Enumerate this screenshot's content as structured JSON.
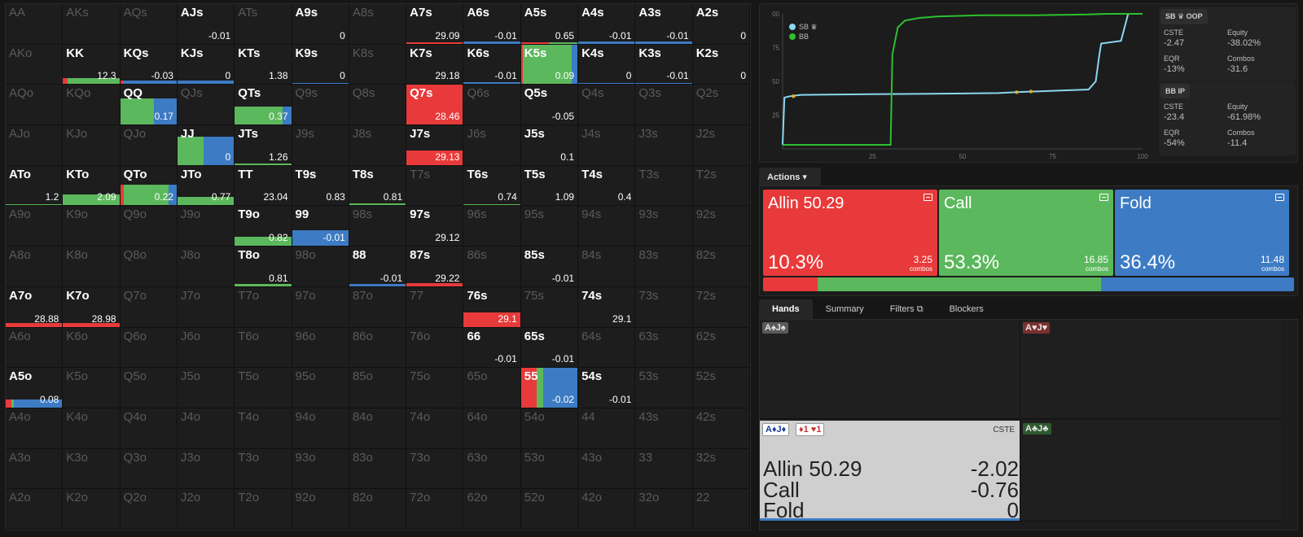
{
  "colors": {
    "allin": "#e83a3a",
    "call": "#5cb85c",
    "fold": "#3d7bc4",
    "sb": "#8ad8f0",
    "bb": "#2ec02e"
  },
  "grid": [
    [
      {
        "h": "AA",
        "d": 1
      },
      {
        "h": "AKs",
        "d": 1
      },
      {
        "h": "AQs",
        "d": 1
      },
      {
        "h": "AJs",
        "v": "-0.01"
      },
      {
        "h": "ATs",
        "d": 1
      },
      {
        "h": "A9s",
        "v": "0"
      },
      {
        "h": "A8s",
        "d": 1
      },
      {
        "h": "A7s",
        "v": "29.09",
        "b": [
          [
            1,
            0,
            0,
            3
          ]
        ]
      },
      {
        "h": "A6s",
        "v": "-0.01",
        "b": [
          [
            0,
            0,
            1,
            5
          ]
        ]
      },
      {
        "h": "A5s",
        "v": "0.65",
        "b": [
          [
            0.5,
            0.5,
            0,
            3
          ]
        ]
      },
      {
        "h": "A4s",
        "v": "-0.01",
        "b": [
          [
            0,
            0,
            1,
            5
          ]
        ]
      },
      {
        "h": "A3s",
        "v": "-0.01",
        "b": [
          [
            0,
            0,
            1,
            5
          ]
        ]
      },
      {
        "h": "A2s",
        "v": "0"
      }
    ],
    [
      {
        "h": "AKo",
        "d": 1
      },
      {
        "h": "KK",
        "v": "12.3",
        "b": [
          [
            0.08,
            0.92,
            0,
            16
          ]
        ]
      },
      {
        "h": "KQs",
        "v": "-0.03",
        "b": [
          [
            0.05,
            0,
            0.95,
            10
          ]
        ]
      },
      {
        "h": "KJs",
        "v": "0",
        "b": [
          [
            0,
            0,
            1,
            10
          ]
        ]
      },
      {
        "h": "KTs",
        "v": "1.38"
      },
      {
        "h": "K9s",
        "v": "0",
        "b": [
          [
            0,
            0,
            1,
            3
          ]
        ]
      },
      {
        "h": "K8s",
        "d": 1
      },
      {
        "h": "K7s",
        "v": "29.18"
      },
      {
        "h": "K6s",
        "v": "-0.01",
        "b": [
          [
            0,
            0,
            1,
            5
          ]
        ]
      },
      {
        "h": "K5s",
        "v": "0.09",
        "b": [
          [
            0.03,
            0.87,
            0.1,
            100
          ]
        ]
      },
      {
        "h": "K4s",
        "v": "0",
        "b": [
          [
            0,
            0,
            1,
            3
          ]
        ]
      },
      {
        "h": "K3s",
        "v": "-0.01",
        "b": [
          [
            0,
            0,
            1,
            3
          ]
        ]
      },
      {
        "h": "K2s",
        "v": "0"
      }
    ],
    [
      {
        "h": "AQo",
        "d": 1
      },
      {
        "h": "KQo",
        "d": 1
      },
      {
        "h": "QQ",
        "v": "0.17",
        "b": [
          [
            0,
            0.6,
            0.4,
            66
          ]
        ]
      },
      {
        "h": "QJs",
        "d": 1
      },
      {
        "h": "QTs",
        "v": "0.37",
        "b": [
          [
            0,
            0.85,
            0.15,
            46
          ]
        ]
      },
      {
        "h": "Q9s",
        "d": 1
      },
      {
        "h": "Q8s",
        "d": 1
      },
      {
        "h": "Q7s",
        "v": "28.46",
        "b": [
          [
            1,
            0,
            0,
            100
          ]
        ]
      },
      {
        "h": "Q6s",
        "d": 1
      },
      {
        "h": "Q5s",
        "v": "-0.05"
      },
      {
        "h": "Q4s",
        "d": 1
      },
      {
        "h": "Q3s",
        "d": 1
      },
      {
        "h": "Q2s",
        "d": 1
      }
    ],
    [
      {
        "h": "AJo",
        "d": 1
      },
      {
        "h": "KJo",
        "d": 1
      },
      {
        "h": "QJo",
        "d": 1
      },
      {
        "h": "JJ",
        "v": "0",
        "b": [
          [
            0,
            0.46,
            0.54,
            72
          ]
        ]
      },
      {
        "h": "JTs",
        "v": "1.26",
        "b": [
          [
            0,
            1,
            0,
            3
          ]
        ]
      },
      {
        "h": "J9s",
        "d": 1
      },
      {
        "h": "J8s",
        "d": 1
      },
      {
        "h": "J7s",
        "v": "29.13",
        "b": [
          [
            1,
            0,
            0,
            36
          ]
        ]
      },
      {
        "h": "J6s",
        "d": 1
      },
      {
        "h": "J5s",
        "v": "0.1"
      },
      {
        "h": "J4s",
        "d": 1
      },
      {
        "h": "J3s",
        "d": 1
      },
      {
        "h": "J2s",
        "d": 1
      }
    ],
    [
      {
        "h": "ATo",
        "v": "1.2",
        "b": [
          [
            0,
            1,
            0,
            3
          ]
        ]
      },
      {
        "h": "KTo",
        "v": "2.09",
        "b": [
          [
            0,
            1,
            0,
            28
          ]
        ]
      },
      {
        "h": "QTo",
        "v": "0.22",
        "b": [
          [
            0.06,
            0.8,
            0.14,
            52
          ]
        ]
      },
      {
        "h": "JTo",
        "v": "0.77",
        "b": [
          [
            0,
            1,
            0,
            22
          ]
        ]
      },
      {
        "h": "TT",
        "v": "23.04"
      },
      {
        "h": "T9s",
        "v": "0.83"
      },
      {
        "h": "T8s",
        "v": "0.81",
        "b": [
          [
            0,
            1,
            0,
            6
          ]
        ]
      },
      {
        "h": "T7s",
        "d": 1
      },
      {
        "h": "T6s",
        "v": "0.74",
        "b": [
          [
            0,
            1,
            0,
            3
          ]
        ]
      },
      {
        "h": "T5s",
        "v": "1.09"
      },
      {
        "h": "T4s",
        "v": "0.4"
      },
      {
        "h": "T3s",
        "d": 1
      },
      {
        "h": "T2s",
        "d": 1
      }
    ],
    [
      {
        "h": "A9o",
        "d": 1
      },
      {
        "h": "K9o",
        "d": 1
      },
      {
        "h": "Q9o",
        "d": 1
      },
      {
        "h": "J9o",
        "d": 1
      },
      {
        "h": "T9o",
        "v": "0.82",
        "b": [
          [
            0,
            1,
            0,
            22
          ]
        ]
      },
      {
        "h": "99",
        "v": "-0.01",
        "b": [
          [
            0,
            0,
            1,
            40
          ]
        ]
      },
      {
        "h": "98s",
        "d": 1
      },
      {
        "h": "97s",
        "v": "29.12"
      },
      {
        "h": "96s",
        "d": 1
      },
      {
        "h": "95s",
        "d": 1
      },
      {
        "h": "94s",
        "d": 1
      },
      {
        "h": "93s",
        "d": 1
      },
      {
        "h": "92s",
        "d": 1
      }
    ],
    [
      {
        "h": "A8o",
        "d": 1
      },
      {
        "h": "K8o",
        "d": 1
      },
      {
        "h": "Q8o",
        "d": 1
      },
      {
        "h": "J8o",
        "d": 1
      },
      {
        "h": "T8o",
        "v": "0.81",
        "b": [
          [
            0,
            1,
            0,
            5
          ]
        ]
      },
      {
        "h": "98o",
        "d": 1
      },
      {
        "h": "88",
        "v": "-0.01",
        "b": [
          [
            0,
            0,
            1,
            6
          ]
        ]
      },
      {
        "h": "87s",
        "v": "29.22",
        "b": [
          [
            1,
            0,
            0,
            8
          ]
        ]
      },
      {
        "h": "86s",
        "d": 1
      },
      {
        "h": "85s",
        "v": "-0.01"
      },
      {
        "h": "84s",
        "d": 1
      },
      {
        "h": "83s",
        "d": 1
      },
      {
        "h": "82s",
        "d": 1
      }
    ],
    [
      {
        "h": "A7o",
        "v": "28.88",
        "b": [
          [
            1,
            0,
            0,
            10
          ]
        ]
      },
      {
        "h": "K7o",
        "v": "28.98",
        "b": [
          [
            1,
            0,
            0,
            10
          ]
        ]
      },
      {
        "h": "Q7o",
        "d": 1
      },
      {
        "h": "J7o",
        "d": 1
      },
      {
        "h": "T7o",
        "d": 1
      },
      {
        "h": "97o",
        "d": 1
      },
      {
        "h": "87o",
        "d": 1
      },
      {
        "h": "77",
        "d": 1
      },
      {
        "h": "76s",
        "v": "29.1",
        "b": [
          [
            1,
            0,
            0,
            36
          ]
        ]
      },
      {
        "h": "75s",
        "d": 1
      },
      {
        "h": "74s",
        "v": "29.1"
      },
      {
        "h": "73s",
        "d": 1
      },
      {
        "h": "72s",
        "d": 1
      }
    ],
    [
      {
        "h": "A6o",
        "d": 1
      },
      {
        "h": "K6o",
        "d": 1
      },
      {
        "h": "Q6o",
        "d": 1
      },
      {
        "h": "J6o",
        "d": 1
      },
      {
        "h": "T6o",
        "d": 1
      },
      {
        "h": "96o",
        "d": 1
      },
      {
        "h": "86o",
        "d": 1
      },
      {
        "h": "76o",
        "d": 1
      },
      {
        "h": "66",
        "v": "-0.01"
      },
      {
        "h": "65s",
        "v": "-0.01"
      },
      {
        "h": "64s",
        "d": 1
      },
      {
        "h": "63s",
        "d": 1
      },
      {
        "h": "62s",
        "d": 1
      }
    ],
    [
      {
        "h": "A5o",
        "v": "0.08",
        "b": [
          [
            0.1,
            0.05,
            0.85,
            20
          ]
        ]
      },
      {
        "h": "K5o",
        "d": 1
      },
      {
        "h": "Q5o",
        "d": 1
      },
      {
        "h": "J5o",
        "d": 1
      },
      {
        "h": "T5o",
        "d": 1
      },
      {
        "h": "95o",
        "d": 1
      },
      {
        "h": "85o",
        "d": 1
      },
      {
        "h": "75o",
        "d": 1
      },
      {
        "h": "65o",
        "d": 1
      },
      {
        "h": "55",
        "v": "-0.02",
        "b": [
          [
            0.28,
            0.12,
            0.6,
            100
          ]
        ]
      },
      {
        "h": "54s",
        "v": "-0.01"
      },
      {
        "h": "53s",
        "d": 1
      },
      {
        "h": "52s",
        "d": 1
      }
    ],
    [
      {
        "h": "A4o",
        "d": 1
      },
      {
        "h": "K4o",
        "d": 1
      },
      {
        "h": "Q4o",
        "d": 1
      },
      {
        "h": "J4o",
        "d": 1
      },
      {
        "h": "T4o",
        "d": 1
      },
      {
        "h": "94o",
        "d": 1
      },
      {
        "h": "84o",
        "d": 1
      },
      {
        "h": "74o",
        "d": 1
      },
      {
        "h": "64o",
        "d": 1
      },
      {
        "h": "54o",
        "d": 1
      },
      {
        "h": "44",
        "d": 1
      },
      {
        "h": "43s",
        "d": 1
      },
      {
        "h": "42s",
        "d": 1
      }
    ],
    [
      {
        "h": "A3o",
        "d": 1
      },
      {
        "h": "K3o",
        "d": 1
      },
      {
        "h": "Q3o",
        "d": 1
      },
      {
        "h": "J3o",
        "d": 1
      },
      {
        "h": "T3o",
        "d": 1
      },
      {
        "h": "93o",
        "d": 1
      },
      {
        "h": "83o",
        "d": 1
      },
      {
        "h": "73o",
        "d": 1
      },
      {
        "h": "63o",
        "d": 1
      },
      {
        "h": "53o",
        "d": 1
      },
      {
        "h": "43o",
        "d": 1
      },
      {
        "h": "33",
        "d": 1
      },
      {
        "h": "32s",
        "d": 1
      }
    ],
    [
      {
        "h": "A2o",
        "d": 1
      },
      {
        "h": "K2o",
        "d": 1
      },
      {
        "h": "Q2o",
        "d": 1
      },
      {
        "h": "J2o",
        "d": 1
      },
      {
        "h": "T2o",
        "d": 1
      },
      {
        "h": "92o",
        "d": 1
      },
      {
        "h": "82o",
        "d": 1
      },
      {
        "h": "72o",
        "d": 1
      },
      {
        "h": "62o",
        "d": 1
      },
      {
        "h": "52o",
        "d": 1
      },
      {
        "h": "42o",
        "d": 1
      },
      {
        "h": "32o",
        "d": 1
      },
      {
        "h": "22",
        "d": 1
      }
    ]
  ],
  "chart_data": {
    "type": "line",
    "xlim": [
      0,
      100
    ],
    "ylim": [
      0,
      100
    ],
    "xticks": [
      "25",
      "50",
      "75",
      "100"
    ],
    "yticks": [
      "00",
      "75",
      "50",
      "25"
    ],
    "legend": [
      {
        "name": "SB ♛"
      },
      {
        "name": "BB"
      }
    ],
    "series": [
      {
        "name": "SB",
        "x": [
          0,
          0.5,
          2,
          5,
          25,
          50,
          60,
          65,
          75,
          85,
          87,
          88,
          88.5,
          94,
          95,
          96,
          97,
          100
        ],
        "y": [
          3,
          38,
          39,
          40,
          40.5,
          41,
          41.3,
          42,
          43,
          44,
          50,
          70,
          78,
          80,
          90,
          100,
          100,
          100
        ]
      },
      {
        "name": "BB",
        "x": [
          0,
          1,
          25,
          30,
          30.5,
          32,
          34,
          38,
          43,
          55,
          70,
          85,
          90,
          94,
          95,
          96,
          100
        ],
        "y": [
          3,
          3,
          3,
          3,
          70,
          90,
          95,
          97,
          98,
          99,
          99,
          99.5,
          100,
          100,
          100,
          100,
          100
        ]
      }
    ],
    "markers": [
      {
        "x": 3,
        "y": 39
      },
      {
        "x": 65,
        "y": 42
      },
      {
        "x": 69,
        "y": 42.5
      }
    ]
  },
  "stats": [
    {
      "hdr": "SB ♛ OOP",
      "cste_l": "CSTE",
      "cste": "-2.47",
      "eq_l": "Equity",
      "eq": "-38.02%",
      "eqr_l": "EQR",
      "eqr": "-13%",
      "cb_l": "Combos",
      "cb": "-31.6"
    },
    {
      "hdr": "BB IP",
      "cste_l": "CSTE",
      "cste": "-23.4",
      "eq_l": "Equity",
      "eq": "-61.98%",
      "eqr_l": "EQR",
      "eqr": "-54%",
      "cb_l": "Combos",
      "cb": "-11.4"
    }
  ],
  "actions_tab": "Actions",
  "actions": [
    {
      "name": "Allin 50.29",
      "pct": "10.3%",
      "combos": "3.25",
      "combos_l": "combos",
      "pct_v": 0.103
    },
    {
      "name": "Call",
      "pct": "53.3%",
      "combos": "16.85",
      "combos_l": "combos",
      "pct_v": 0.533
    },
    {
      "name": "Fold",
      "pct": "36.4%",
      "combos": "11.48",
      "combos_l": "combos",
      "pct_v": 0.364
    }
  ],
  "tabs": [
    "Hands",
    "Summary",
    "Filters",
    "Blockers"
  ],
  "hands": [
    {
      "badge": "A♠J♠",
      "color": "#5a5a5a"
    },
    {
      "badge": "A♥J♥",
      "color": "#7a3030"
    },
    {
      "badge": "A♦J♦",
      "blk": "♦1 ♥1",
      "cste": "CSTE",
      "rows": [
        {
          "a": "Allin 50.29",
          "v": "-2.02"
        },
        {
          "a": "Call",
          "v": "-0.76"
        },
        {
          "a": "Fold",
          "v": "0"
        }
      ]
    },
    {
      "badge": "A♣J♣",
      "color": "#2f5a2f"
    }
  ]
}
